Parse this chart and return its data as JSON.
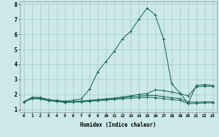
{
  "background_color": "#cce8e8",
  "grid_color": "#aacccc",
  "line_color": "#1a6b60",
  "xlabel": "Humidex (Indice chaleur)",
  "xlim": [
    -0.5,
    23.5
  ],
  "ylim": [
    0.8,
    8.2
  ],
  "yticks": [
    1,
    2,
    3,
    4,
    5,
    6,
    7,
    8
  ],
  "xticks": [
    0,
    1,
    2,
    3,
    4,
    5,
    6,
    7,
    8,
    9,
    10,
    11,
    12,
    13,
    14,
    15,
    16,
    17,
    18,
    19,
    20,
    21,
    22,
    23
  ],
  "series": [
    {
      "x": [
        0,
        1,
        2,
        3,
        4,
        5,
        6,
        7,
        8,
        9,
        10,
        11,
        12,
        13,
        14,
        15,
        16,
        17,
        18,
        19,
        20,
        21,
        22,
        23
      ],
      "y": [
        1.5,
        1.8,
        1.8,
        1.65,
        1.6,
        1.55,
        1.6,
        1.7,
        2.35,
        3.5,
        4.2,
        4.85,
        5.7,
        6.2,
        7.0,
        7.75,
        7.3,
        5.7,
        2.7,
        2.1,
        1.4,
        2.6,
        2.65,
        2.6
      ]
    },
    {
      "x": [
        0,
        1,
        2,
        3,
        4,
        5,
        6,
        7,
        8,
        9,
        10,
        11,
        12,
        13,
        14,
        15,
        16,
        17,
        18,
        19,
        20,
        21,
        22,
        23
      ],
      "y": [
        1.5,
        1.75,
        1.75,
        1.6,
        1.55,
        1.5,
        1.52,
        1.55,
        1.6,
        1.65,
        1.7,
        1.75,
        1.82,
        1.9,
        2.0,
        2.05,
        2.3,
        2.25,
        2.15,
        2.05,
        1.9,
        2.5,
        2.55,
        2.52
      ]
    },
    {
      "x": [
        0,
        1,
        2,
        3,
        4,
        5,
        6,
        7,
        8,
        9,
        10,
        11,
        12,
        13,
        14,
        15,
        16,
        17,
        18,
        19,
        20,
        21,
        22,
        23
      ],
      "y": [
        1.5,
        1.75,
        1.7,
        1.6,
        1.55,
        1.48,
        1.5,
        1.53,
        1.57,
        1.62,
        1.67,
        1.72,
        1.78,
        1.83,
        1.88,
        1.92,
        1.92,
        1.85,
        1.78,
        1.72,
        1.5,
        1.48,
        1.5,
        1.5
      ]
    },
    {
      "x": [
        0,
        1,
        2,
        3,
        4,
        5,
        6,
        7,
        8,
        9,
        10,
        11,
        12,
        13,
        14,
        15,
        16,
        17,
        18,
        19,
        20,
        21,
        22,
        23
      ],
      "y": [
        1.48,
        1.72,
        1.7,
        1.58,
        1.52,
        1.46,
        1.48,
        1.5,
        1.54,
        1.58,
        1.62,
        1.66,
        1.7,
        1.74,
        1.78,
        1.8,
        1.78,
        1.72,
        1.65,
        1.6,
        1.38,
        1.4,
        1.43,
        1.43
      ]
    }
  ]
}
